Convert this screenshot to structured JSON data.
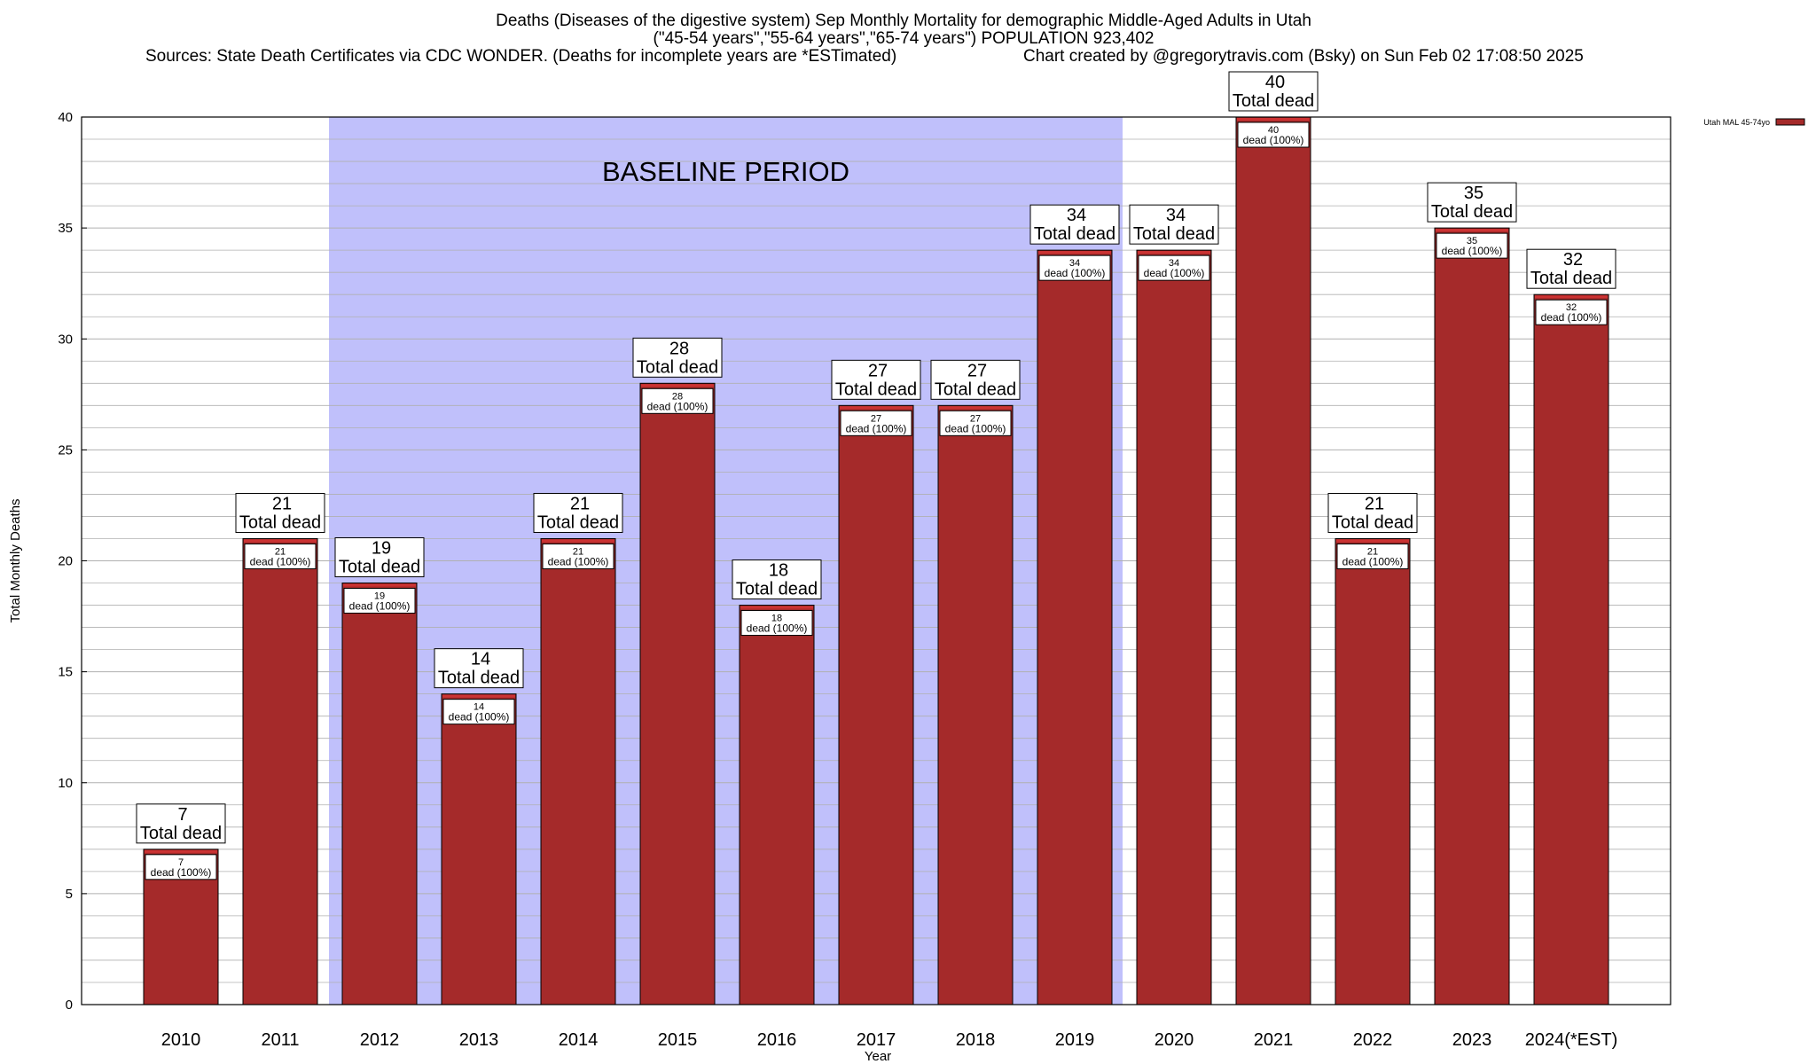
{
  "header": {
    "title": "Deaths (Diseases of the digestive system) Sep Monthly Mortality for demographic Middle-Aged Adults in Utah",
    "subtitle": "(\"45-54 years\",\"55-64 years\",\"65-74 years\") POPULATION 923,402",
    "sources": "Sources: State Death Certificates via CDC WONDER. (Deaths for incomplete years are *ESTimated)",
    "credit": "Chart created by @gregorytravis.com (Bsky) on Sun Feb 02 17:08:50 2025"
  },
  "chart_data": {
    "type": "bar",
    "title": "Deaths (Diseases of the digestive system) Sep Monthly Mortality for demographic Middle-Aged Adults in Utah",
    "xlabel": "Year",
    "ylabel": "Total Monthly Deaths",
    "ylim": [
      0,
      40
    ],
    "yticks": [
      0,
      5,
      10,
      15,
      20,
      25,
      30,
      35,
      40
    ],
    "grid": true,
    "legend_position": "top-right",
    "categories": [
      "2010",
      "2011",
      "2012",
      "2013",
      "2014",
      "2015",
      "2016",
      "2017",
      "2018",
      "2019",
      "2020",
      "2021",
      "2022",
      "2023",
      "2024(*EST)"
    ],
    "series": [
      {
        "name": "Utah MAL 45-74yo",
        "values": [
          7,
          21,
          19,
          14,
          21,
          28,
          18,
          27,
          27,
          34,
          34,
          40,
          21,
          35,
          32
        ]
      }
    ],
    "top_label_suffix": "Total dead",
    "inner_label_suffix": "dead (100%)",
    "baseline_region": {
      "label": "BASELINE PERIOD",
      "from_category": "2012",
      "to_category": "2019"
    },
    "colors": {
      "bar": "#a52a2a",
      "bar_top": "#cc3333",
      "baseline": "#c0c0fb",
      "grid": "#b0b0b0"
    }
  }
}
